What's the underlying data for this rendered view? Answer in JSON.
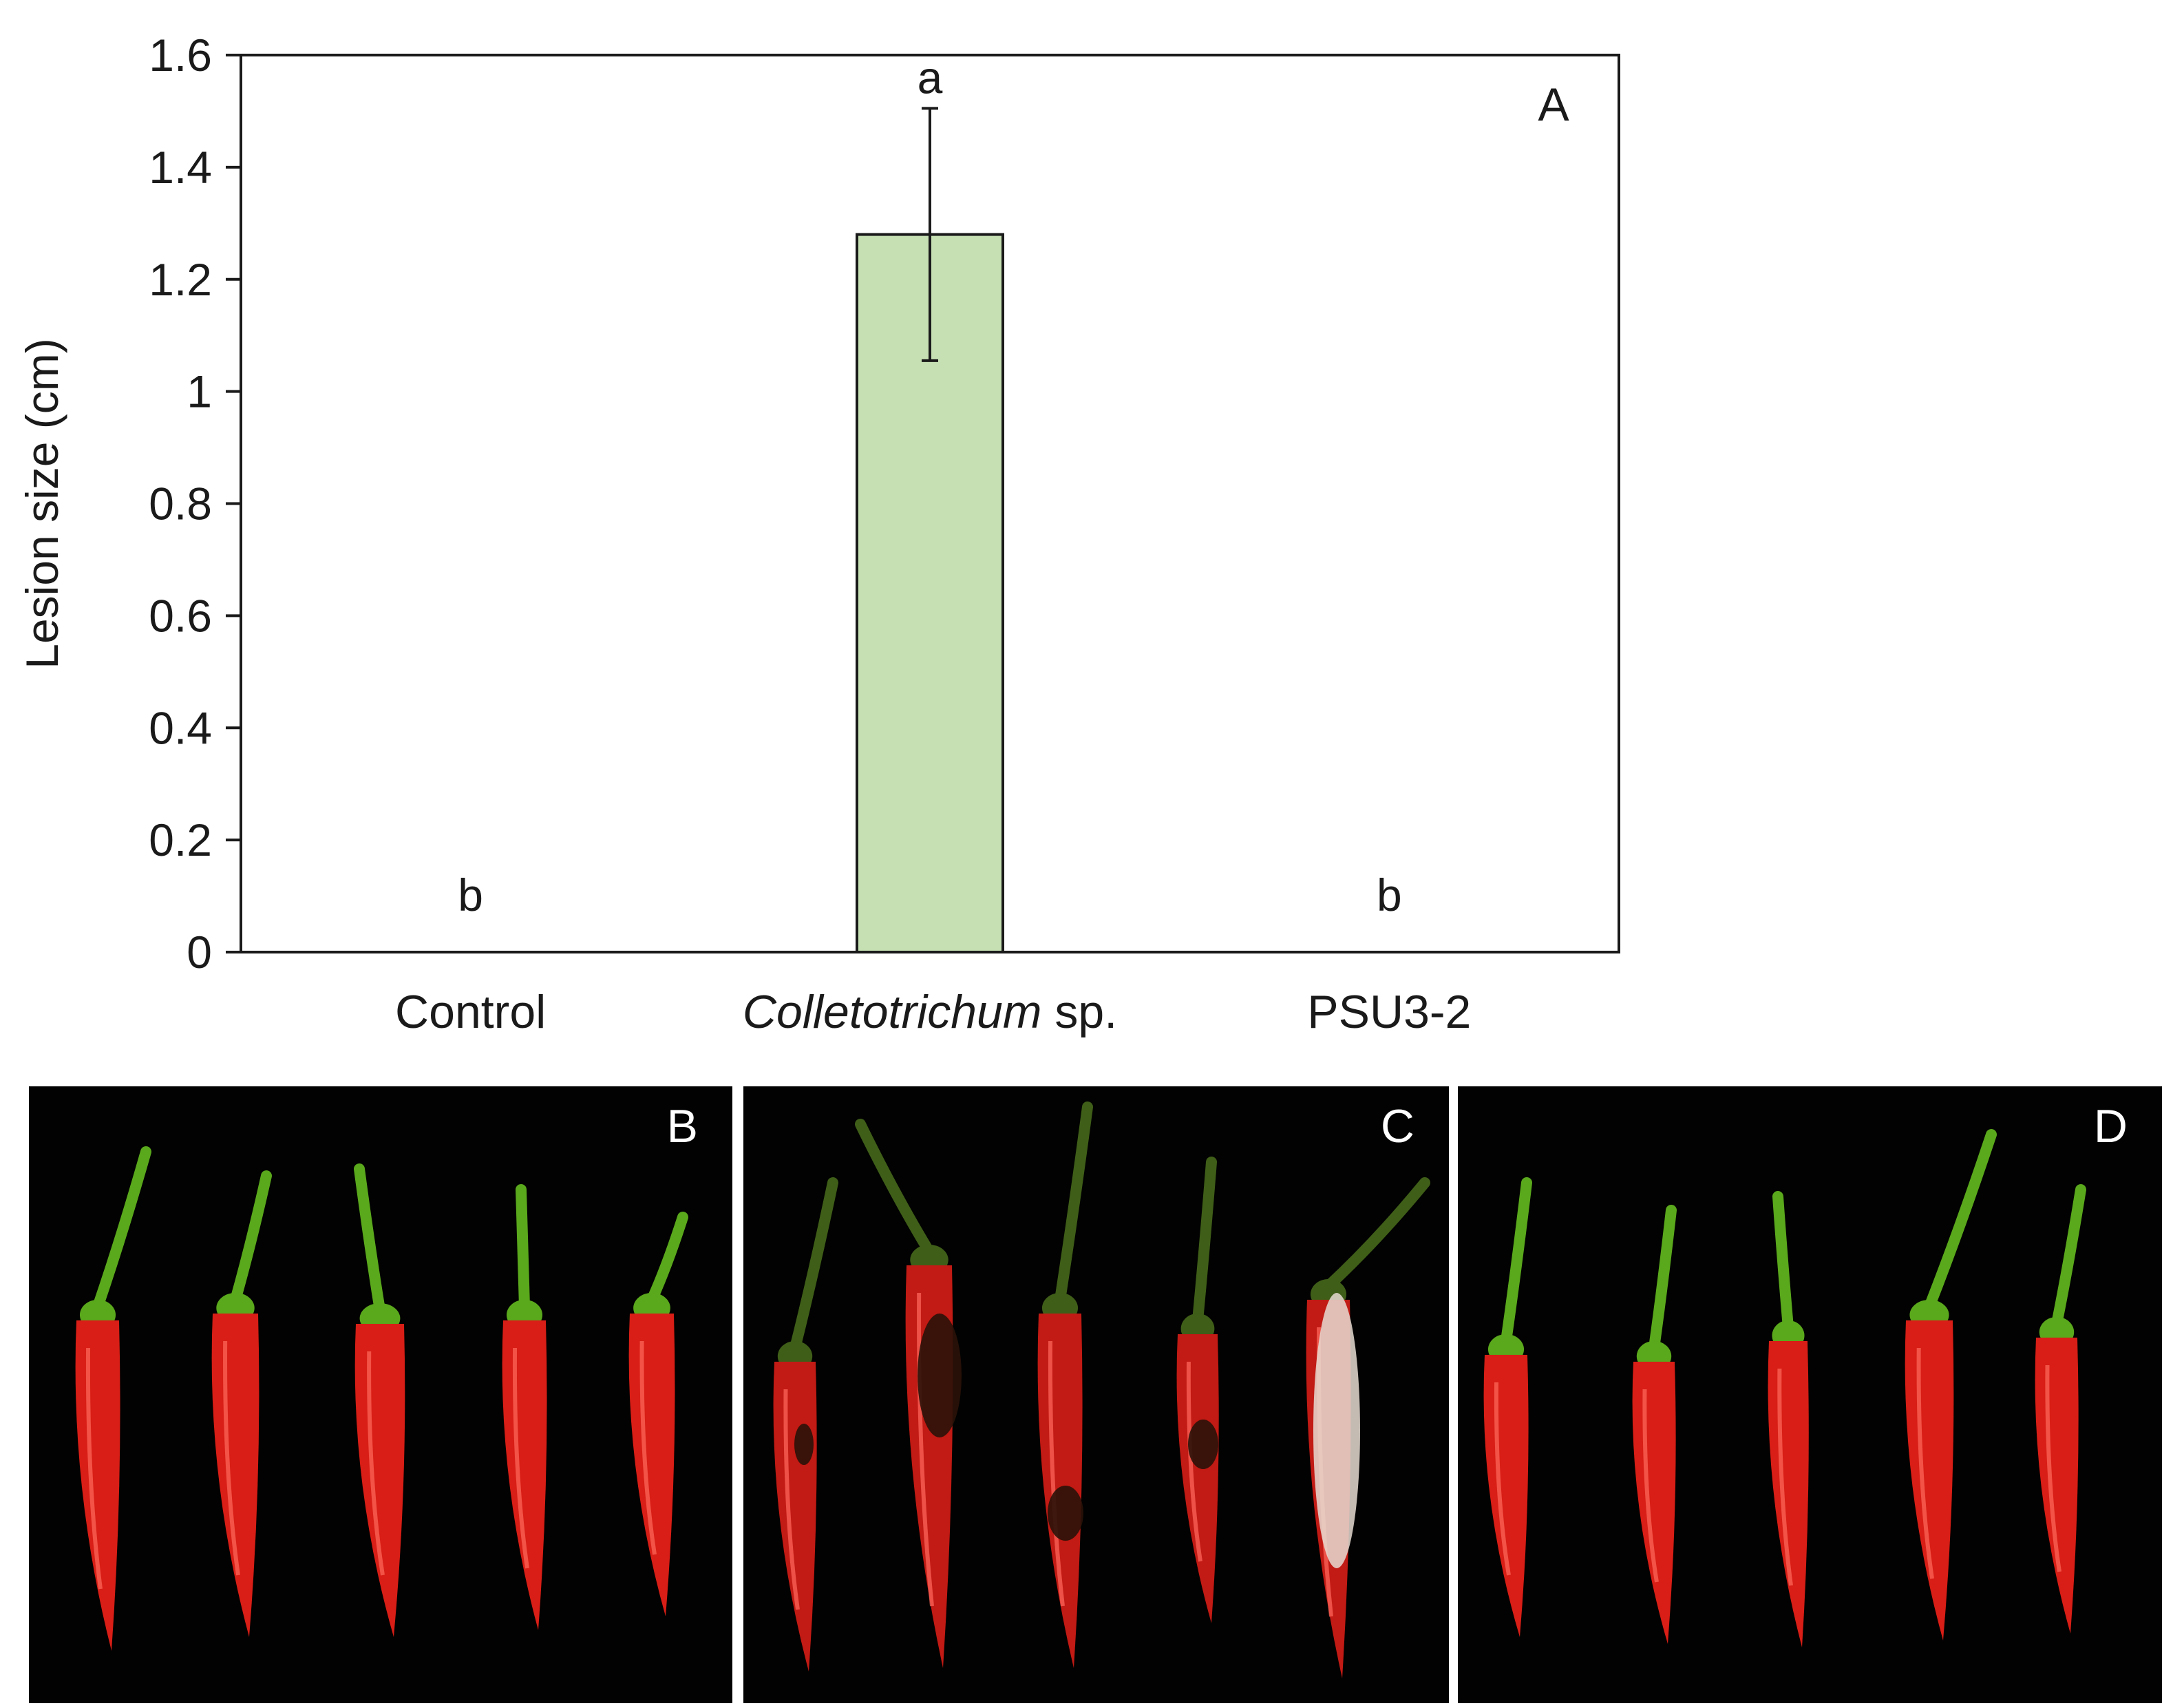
{
  "chart_data": {
    "type": "bar",
    "categories": [
      "Control",
      "Colletotrichum sp.",
      "PSU3-2"
    ],
    "category_parts": [
      [
        {
          "text": "Control",
          "italic": false
        }
      ],
      [
        {
          "text": "Colletotrichum",
          "italic": true
        },
        {
          "text": " sp.",
          "italic": false
        }
      ],
      [
        {
          "text": "PSU3-2",
          "italic": false
        }
      ]
    ],
    "values": [
      0,
      1.28,
      0
    ],
    "error": [
      0,
      0.225,
      0
    ],
    "significance_letters": [
      "b",
      "a",
      "b"
    ],
    "ylabel": "Lesion size (cm)",
    "xlabel": "",
    "ylim": [
      0,
      1.6
    ],
    "yticks": [
      "0",
      "0.2",
      "0.4",
      "0.6",
      "0.8",
      "1",
      "1.2",
      "1.4",
      "1.6"
    ],
    "panel_label": "A",
    "bar_color": "#c6e0b4",
    "bar_edge_color": "#1a1a1a",
    "grid": false
  },
  "photo_panels": [
    {
      "label": "B",
      "condition": "Control",
      "pepper_color": "#d81e16",
      "stem_color": "#5aa81c"
    },
    {
      "label": "C",
      "condition": "Colletotrichum sp.",
      "pepper_color": "#c21a14",
      "stem_color": "#3f5e18"
    },
    {
      "label": "D",
      "condition": "PSU3-2",
      "pepper_color": "#d81e16",
      "stem_color": "#5aa81c"
    }
  ]
}
